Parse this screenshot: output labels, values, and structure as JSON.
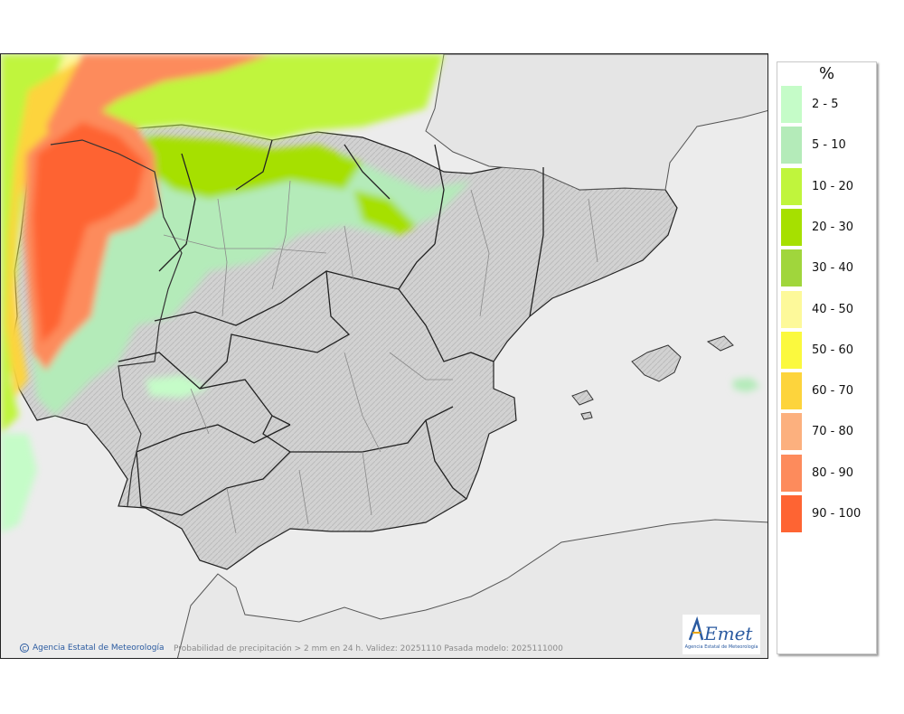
{
  "map": {
    "credit": "Agencia Estatal de Meteorología",
    "caption": "Probabilidad de precipitación > 2 mm en 24 h. Validez: 20251110 Pasada modelo: 2025111000",
    "logo_text": "AEmet",
    "logo_subtext": "Agencia Estatal de Meteorología"
  },
  "legend": {
    "title": "%",
    "items": [
      {
        "label": "2 - 5",
        "color": "#c5fcc8"
      },
      {
        "label": "5 - 10",
        "color": "#b4ebb9"
      },
      {
        "label": "10 - 20",
        "color": "#c0f53c"
      },
      {
        "label": "20 - 30",
        "color": "#a6e000"
      },
      {
        "label": "30 - 40",
        "color": "#a0d63c"
      },
      {
        "label": "40 - 50",
        "color": "#fdf99a"
      },
      {
        "label": "50 - 60",
        "color": "#fbf93e"
      },
      {
        "label": "60 - 70",
        "color": "#fdd43c"
      },
      {
        "label": "70 - 80",
        "color": "#fcb07e"
      },
      {
        "label": "80 - 90",
        "color": "#fd8b5c"
      },
      {
        "label": "90 - 100",
        "color": "#fe6433"
      }
    ]
  },
  "colors": {
    "sea": "#ececec",
    "land": "#d4d4d4",
    "border": "#222222",
    "brand": "#2a5aa0"
  }
}
